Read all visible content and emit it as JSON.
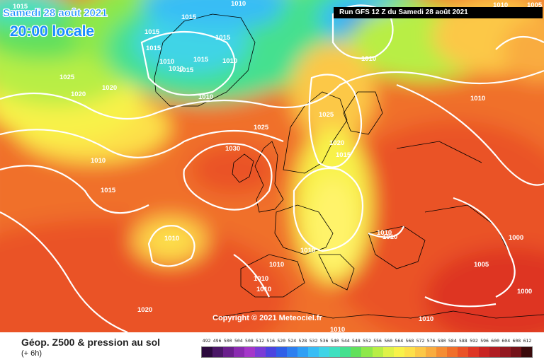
{
  "header": {
    "date_text": "Samedi 28 août 2021",
    "time_text": "20:00 locale",
    "run_text": "Run GFS 12 Z du Samedi 28 août 2021"
  },
  "copyright": "Copyright © 2021 Meteociel.fr",
  "legend": {
    "title": "Géop. Z500 & pression au sol",
    "subtitle": "(+ 6h)",
    "scale_values": [
      "492",
      "496",
      "500",
      "504",
      "508",
      "512",
      "516",
      "520",
      "524",
      "528",
      "532",
      "536",
      "540",
      "544",
      "548",
      "552",
      "556",
      "560",
      "564",
      "568",
      "572",
      "576",
      "580",
      "584",
      "588",
      "592",
      "596",
      "600",
      "604",
      "608",
      "612"
    ],
    "scale_colors": [
      "#2b0a3d",
      "#4a1766",
      "#6a1f8c",
      "#8a2bb0",
      "#a437c9",
      "#7a3cd6",
      "#4b44e0",
      "#2f5fe8",
      "#2d7ff0",
      "#2f9ff5",
      "#38bdf5",
      "#3fd4e6",
      "#3fe0c0",
      "#45e08f",
      "#62e05c",
      "#8ee84a",
      "#b8ee45",
      "#dff248",
      "#f8f24a",
      "#fde04a",
      "#fcc847",
      "#f9ac3f",
      "#f58d33",
      "#f06f2a",
      "#ea5226",
      "#de3624",
      "#c92422",
      "#b01d22",
      "#931820",
      "#731219",
      "#3a0a0c"
    ]
  },
  "isobar_labels": [
    "1015",
    "1015",
    "1015",
    "1015",
    "1010",
    "1010",
    "1015",
    "1010",
    "1015",
    "1010",
    "1010",
    "1015",
    "1010",
    "1025",
    "1020",
    "1020",
    "1010",
    "1010",
    "1025",
    "1030",
    "1025",
    "1020",
    "1015",
    "1015",
    "1010",
    "1010",
    "1010",
    "1005",
    "1000",
    "1000",
    "1010",
    "1010",
    "1010",
    "1020",
    "1010",
    "1010",
    "1010",
    "1010",
    "1005"
  ]
}
